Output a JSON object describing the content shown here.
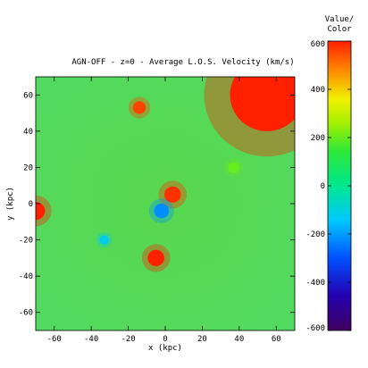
{
  "chart_data": {
    "type": "heatmap",
    "title": "AGN-OFF - z=0 - Average L.O.S. Velocity (km/s)",
    "xlabel": "x (kpc)",
    "ylabel": "y (kpc)",
    "xlim": [
      -70,
      70
    ],
    "ylim": [
      -70,
      70
    ],
    "xticks": [
      -60,
      -40,
      -20,
      0,
      20,
      40,
      60
    ],
    "yticks": [
      -60,
      -40,
      -20,
      0,
      20,
      40,
      60
    ],
    "background_value": 150,
    "features": [
      {
        "kind": "blob",
        "x": -70,
        "y": -4,
        "r": 5,
        "value": 600
      },
      {
        "kind": "blob",
        "x": -14,
        "y": 53,
        "r": 3.5,
        "value": 560
      },
      {
        "kind": "blob",
        "x": 4,
        "y": 5,
        "r": 4.5,
        "value": 580
      },
      {
        "kind": "blob",
        "x": -2,
        "y": -4,
        "r": 4,
        "value": -220
      },
      {
        "kind": "blob",
        "x": -33,
        "y": -20,
        "r": 2.5,
        "value": -120
      },
      {
        "kind": "blob",
        "x": -5,
        "y": -30,
        "r": 4.5,
        "value": 620
      },
      {
        "kind": "blob",
        "x": 37,
        "y": 20,
        "r": 3,
        "value": 200
      },
      {
        "kind": "blob",
        "x": 55,
        "y": 60,
        "r": 20,
        "value": 620
      }
    ],
    "colorbar": {
      "title_line1": "Value/",
      "title_line2": "Color",
      "range": [
        -600,
        600
      ],
      "ticks": [
        "600",
        "400",
        "200",
        "0",
        "-200",
        "-400",
        "-600"
      ],
      "tick_values": [
        600,
        400,
        200,
        0,
        -200,
        -400,
        -600
      ]
    }
  }
}
